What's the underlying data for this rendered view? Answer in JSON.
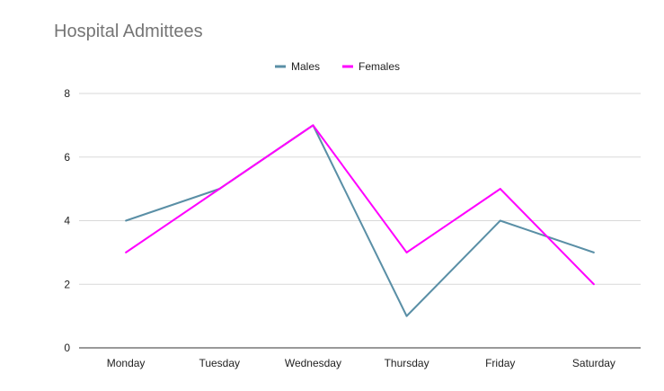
{
  "chart_data": {
    "type": "line",
    "title": "Hospital Admittees",
    "xlabel": "",
    "ylabel": "",
    "categories": [
      "Monday",
      "Tuesday",
      "Wednesday",
      "Thursday",
      "Friday",
      "Saturday"
    ],
    "series": [
      {
        "name": "Males",
        "color": "#5a8fa6",
        "values": [
          4,
          5,
          7,
          1,
          4,
          3
        ]
      },
      {
        "name": "Females",
        "color": "#ff00ff",
        "values": [
          3,
          5,
          7,
          3,
          5,
          2
        ]
      }
    ],
    "ylim": [
      0,
      8
    ],
    "yticks": [
      0,
      2,
      4,
      6,
      8
    ],
    "grid": true,
    "legend_position": "top-center"
  }
}
